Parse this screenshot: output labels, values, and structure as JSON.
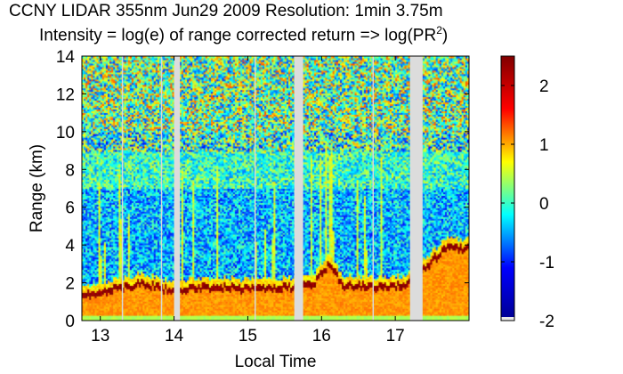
{
  "title": "CCNY LIDAR 355nm Jun29 2009 Resolution: 1min 3.75m",
  "subtitle_main": "Intensity = log(e) of range corrected return => log(PR",
  "subtitle_sup": "2",
  "subtitle_end": ")",
  "colors": {
    "jet": [
      "#00008f",
      "#0000ff",
      "#00ffff",
      "#ffff00",
      "#ff0000",
      "#800000"
    ],
    "gap": "#dcdcdc",
    "axis": "#000000"
  },
  "chart_data": {
    "type": "heatmap",
    "title": "CCNY LIDAR 355nm Jun29 2009 Resolution: 1min 3.75m",
    "subtitle": "Intensity = log(e) of range corrected return => log(PR^2)",
    "xlabel": "Local Time",
    "ylabel": "Range (km)",
    "xlim": [
      12.75,
      18.0
    ],
    "ylim": [
      0,
      14
    ],
    "xticks": [
      13,
      14,
      15,
      16,
      17
    ],
    "xtick_labels": [
      "13",
      "14",
      "15",
      "16",
      "17"
    ],
    "yticks": [
      0,
      2,
      4,
      6,
      8,
      10,
      12,
      14
    ],
    "ytick_labels": [
      "0",
      "2",
      "4",
      "6",
      "8",
      "10",
      "12",
      "14"
    ],
    "colorbar": {
      "range": [
        -2,
        2.5
      ],
      "ticks": [
        -2,
        -1,
        0,
        1,
        2
      ],
      "tick_labels": [
        "-2",
        "-1",
        "0",
        "1",
        "2"
      ]
    },
    "data_gaps_hours": [
      [
        14.0,
        14.08
      ],
      [
        15.63,
        15.75
      ],
      [
        17.2,
        17.37
      ]
    ],
    "thin_gap_hours": [
      13.3,
      13.83,
      15.1,
      16.7
    ],
    "boundary_layer_top_km": [
      {
        "time": 12.75,
        "height": 1.3
      },
      {
        "time": 13.0,
        "height": 1.5
      },
      {
        "time": 13.3,
        "height": 1.8
      },
      {
        "time": 13.6,
        "height": 2.0
      },
      {
        "time": 13.95,
        "height": 1.6
      },
      {
        "time": 14.2,
        "height": 1.7
      },
      {
        "time": 14.6,
        "height": 1.8
      },
      {
        "time": 15.0,
        "height": 1.7
      },
      {
        "time": 15.6,
        "height": 1.8
      },
      {
        "time": 15.9,
        "height": 2.0
      },
      {
        "time": 16.1,
        "height": 3.0
      },
      {
        "time": 16.3,
        "height": 1.9
      },
      {
        "time": 16.8,
        "height": 1.8
      },
      {
        "time": 17.15,
        "height": 1.9
      },
      {
        "time": 17.45,
        "height": 3.0
      },
      {
        "time": 17.7,
        "height": 3.9
      },
      {
        "time": 18.0,
        "height": 3.8
      }
    ]
  }
}
